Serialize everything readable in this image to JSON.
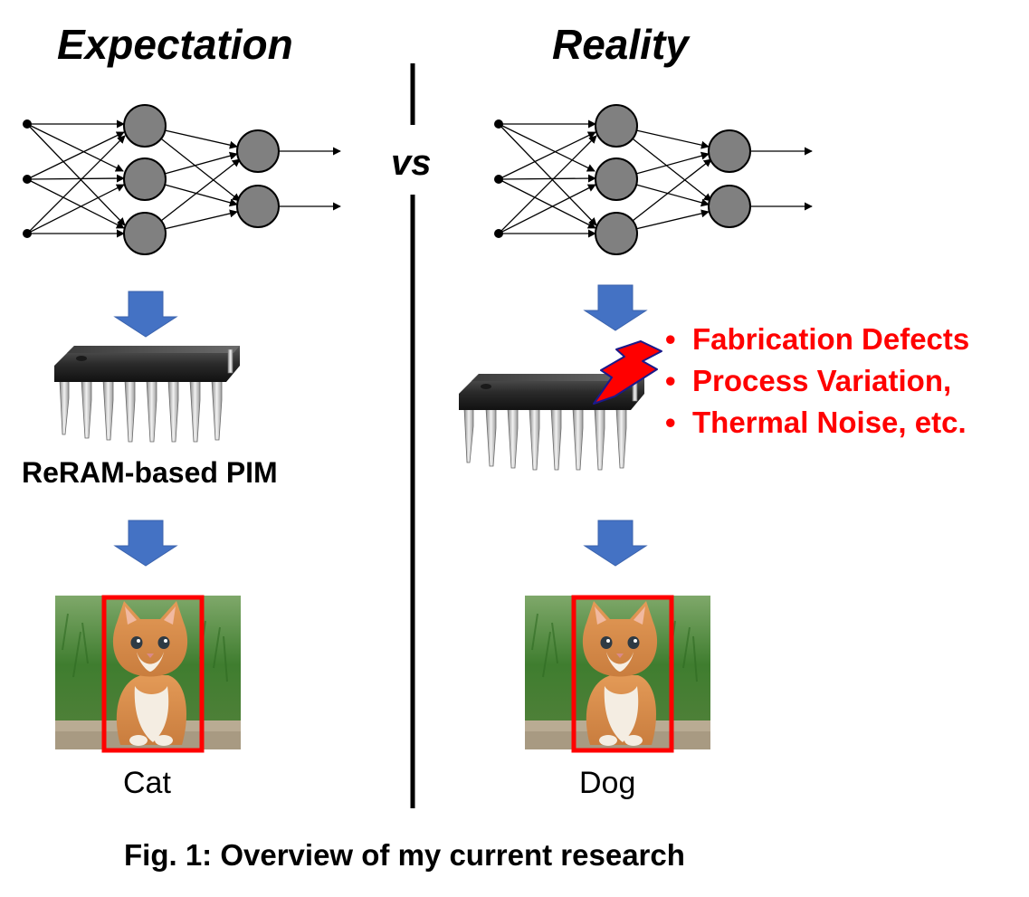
{
  "left": {
    "heading": "Expectation",
    "device_label": "ReRAM-based PIM",
    "prediction": "Cat"
  },
  "divider_label": "vs",
  "right": {
    "heading": "Reality",
    "prediction": "Dog",
    "issues": [
      "Fabrication Defects",
      "Process Variation,",
      "Thermal Noise, etc."
    ]
  },
  "caption": "Fig. 1: Overview of my current research",
  "colors": {
    "neuron_fill": "#808080",
    "flow_arrow": "#4472c4",
    "error_text": "#ff0000",
    "bounding_box": "#ff0000"
  },
  "icons": {
    "flow": "down-arrow-icon",
    "fault": "lightning-bolt-icon",
    "device": "chip-icon",
    "sample": "cat-photo"
  }
}
